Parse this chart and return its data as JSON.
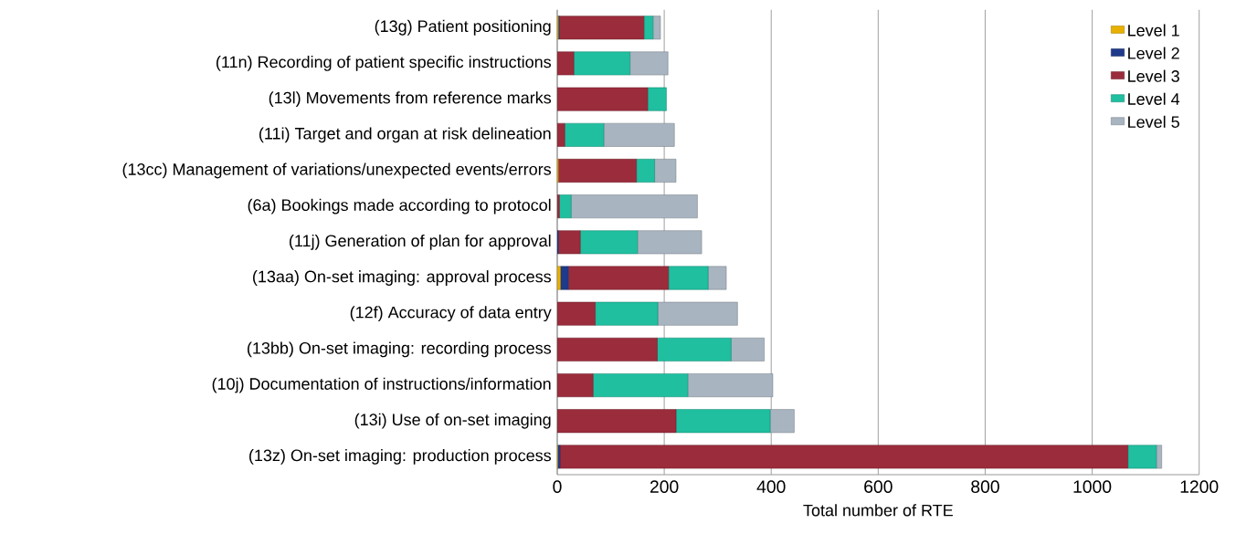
{
  "chart_data": {
    "type": "bar",
    "orientation": "horizontal",
    "stacked": true,
    "xlabel": "Total number of RTE",
    "categories": [
      "(13g) Patient positioning",
      "(11n) Recording of patient specific instructions",
      "(13l) Movements from reference marks",
      "(11i) Target and organ at risk delineation",
      "(13cc) Management of variations/unexpected events/errors",
      "(6a) Bookings made according to protocol",
      "(11j) Generation of plan for approval",
      "(13aa) On-set imaging: approval process",
      "(12f) Accuracy of data entry",
      "(13bb) On-set imaging: recording process",
      "(10j) Documentation of instructions/information",
      "(13i) Use of on-set imaging",
      "(13z) On-set imaging: production process"
    ],
    "series": [
      {
        "name": "Level 1",
        "color": "#e8b000",
        "values": [
          2,
          0,
          0,
          0,
          2,
          0,
          0,
          6,
          0,
          0,
          0,
          0,
          1
        ]
      },
      {
        "name": "Level 2",
        "color": "#1f3a8a",
        "values": [
          2,
          0,
          null,
          0,
          0,
          0,
          2,
          15,
          0,
          0,
          0,
          null,
          4
        ]
      },
      {
        "name": "Level 3",
        "color": "#9b2c3c",
        "values": [
          158,
          31,
          169,
          14,
          146,
          4,
          41,
          187,
          71,
          187,
          67,
          222,
          1062
        ]
      },
      {
        "name": "Level 4",
        "color": "#1fbfa0",
        "values": [
          17,
          105,
          35,
          73,
          34,
          22,
          107,
          74,
          117,
          138,
          177,
          176,
          53
        ]
      },
      {
        "name": "Level 5",
        "color": "#a8b4c0",
        "values": [
          14,
          71,
          null,
          132,
          40,
          236,
          120,
          34,
          149,
          62,
          159,
          45,
          10
        ]
      }
    ],
    "xlim": [
      0,
      1200
    ],
    "xticks": [
      0,
      200,
      400,
      600,
      800,
      1000,
      1200
    ],
    "grid": "x",
    "legend": "top right"
  }
}
